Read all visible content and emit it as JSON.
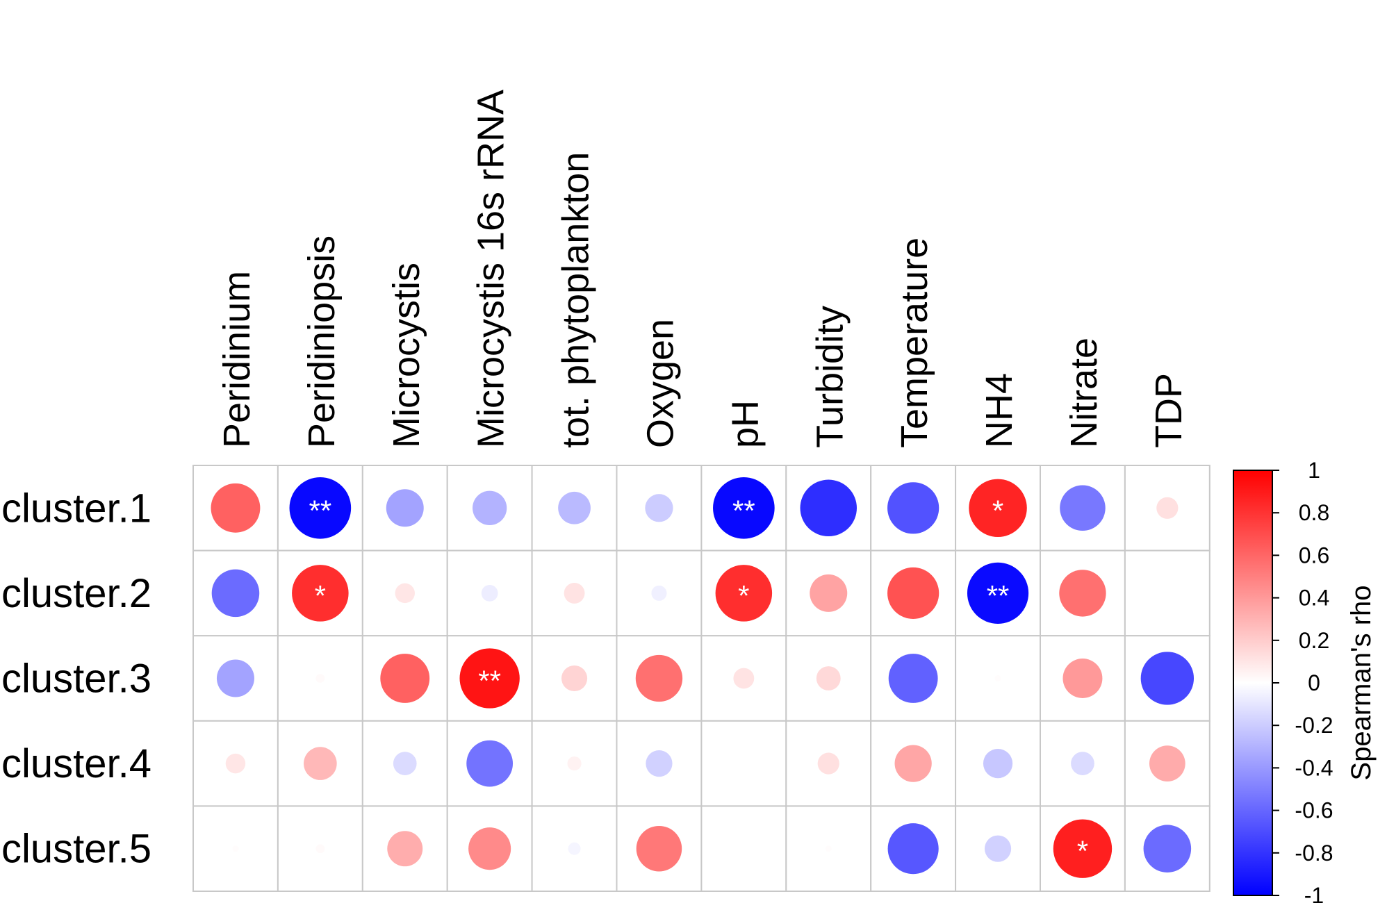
{
  "chart_data": {
    "type": "heatmap",
    "title": "",
    "rows": [
      "cluster.1",
      "cluster.2",
      "cluster.3",
      "cluster.4",
      "cluster.5"
    ],
    "columns": [
      "Peridinium",
      "Peridiniopsis",
      "Microcystis",
      "Microcystis 16s rRNA",
      "tot. phytoplankton",
      "Oxygen",
      "pH",
      "Turbidity",
      "Temperature",
      "NH4",
      "Nitrate",
      "TDP"
    ],
    "values": [
      [
        0.62,
        -0.97,
        -0.36,
        -0.3,
        -0.27,
        -0.2,
        -0.97,
        -0.82,
        -0.68,
        0.86,
        -0.53,
        0.12
      ],
      [
        -0.58,
        0.82,
        0.1,
        -0.07,
        0.11,
        -0.06,
        0.82,
        0.36,
        0.68,
        -0.96,
        0.56,
        0.0
      ],
      [
        -0.36,
        0.02,
        0.62,
        0.92,
        0.17,
        0.56,
        0.11,
        0.15,
        -0.62,
        0.01,
        0.4,
        -0.72
      ],
      [
        0.1,
        0.28,
        -0.14,
        -0.55,
        0.05,
        -0.18,
        0.0,
        0.12,
        0.35,
        -0.22,
        -0.14,
        0.33
      ],
      [
        0.01,
        0.02,
        0.32,
        0.46,
        -0.04,
        0.53,
        0.0,
        0.01,
        -0.66,
        -0.18,
        0.88,
        -0.58
      ]
    ],
    "significance": [
      [
        "",
        "**",
        "",
        "",
        "",
        "",
        "**",
        "",
        "",
        "*",
        "",
        ""
      ],
      [
        "",
        "*",
        "",
        "",
        "",
        "",
        "*",
        "",
        "",
        "**",
        "",
        ""
      ],
      [
        "",
        "",
        "",
        "**",
        "",
        "",
        "",
        "",
        "",
        "",
        "",
        ""
      ],
      [
        "",
        "",
        "",
        "",
        "",
        "",
        "",
        "",
        "",
        "",
        "",
        ""
      ],
      [
        "",
        "",
        "",
        "",
        "",
        "",
        "",
        "",
        "",
        "",
        "*",
        ""
      ]
    ],
    "colorbar": {
      "label": "Spearman's rho",
      "range": [
        -1,
        1
      ],
      "ticks": [
        "1",
        "0.8",
        "0.6",
        "0.4",
        "0.2",
        "0",
        "-0.2",
        "-0.4",
        "-0.6",
        "-0.8",
        "-1"
      ],
      "tick_values": [
        1,
        0.8,
        0.6,
        0.4,
        0.2,
        0,
        -0.2,
        -0.4,
        -0.6,
        -0.8,
        -1
      ],
      "colors": {
        "negative": "#0000ff",
        "zero": "#ffffff",
        "positive": "#ff0000"
      }
    },
    "grid": true
  }
}
